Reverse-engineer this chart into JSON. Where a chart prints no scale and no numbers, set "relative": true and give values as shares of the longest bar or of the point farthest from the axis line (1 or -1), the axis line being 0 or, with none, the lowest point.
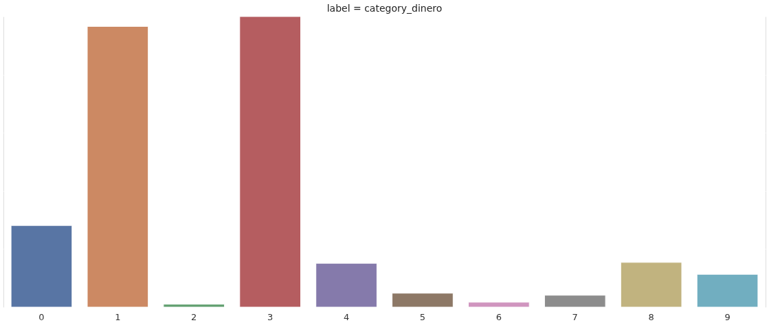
{
  "chart_data": {
    "type": "bar",
    "title": "label = category_dinero",
    "relative": true,
    "grid": "y",
    "categories": [
      "0",
      "1",
      "2",
      "3",
      "4",
      "5",
      "6",
      "7",
      "8",
      "9"
    ],
    "values": [
      0.281,
      0.966,
      0.01,
      1,
      0.151,
      0.048,
      0.017,
      0.041,
      0.154,
      0.113
    ],
    "colors": [
      "#5875a4",
      "#cc8963",
      "#5f9e6e",
      "#b55d60",
      "#857aab",
      "#8d7866",
      "#d095bf",
      "#8c8c8c",
      "#c1b37f",
      "#71aec0"
    ]
  }
}
